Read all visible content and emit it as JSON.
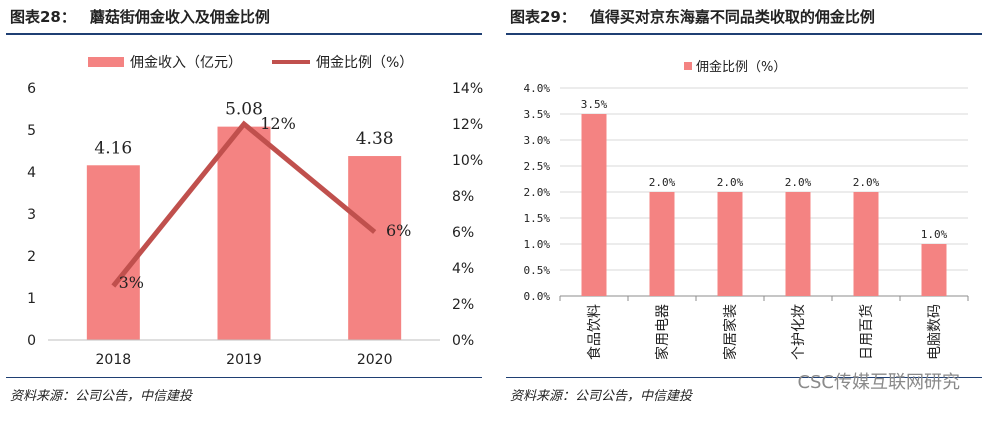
{
  "left": {
    "title_num": "图表28：",
    "title_text": "蘑菇街佣金收入及佣金比例",
    "source": "资料来源：公司公告，中信建投"
  },
  "right": {
    "title_num": "图表29：",
    "title_text": "值得买对京东海嘉不同品类收取的佣金比例",
    "source": "资料来源：公司公告，中信建投"
  },
  "watermark": "CSC传媒互联网研究",
  "colors": {
    "bar": "#f48382",
    "line": "#c0504d",
    "rule": "#1f3f73",
    "grid": "#d9d9d9"
  },
  "chart_data": [
    {
      "type": "bar",
      "categories": [
        "2018",
        "2019",
        "2020"
      ],
      "series": [
        {
          "name": "佣金收入（亿元）",
          "type": "bar",
          "axis": "left",
          "values": [
            4.16,
            5.08,
            4.38
          ],
          "labels": [
            "4.16",
            "5.08",
            "4.38"
          ]
        },
        {
          "name": "佣金比例（%）",
          "type": "line",
          "axis": "right",
          "values": [
            3,
            12,
            6
          ],
          "labels": [
            "3%",
            "12%",
            "6%"
          ]
        }
      ],
      "ylim": [
        0,
        6
      ],
      "yticks": [
        "0",
        "1",
        "2",
        "3",
        "4",
        "5",
        "6"
      ],
      "y2lim": [
        0,
        14
      ],
      "y2ticks": [
        "0%",
        "2%",
        "4%",
        "6%",
        "8%",
        "10%",
        "12%",
        "14%"
      ],
      "legend": "top",
      "grid": false
    },
    {
      "type": "bar",
      "categories": [
        "食品饮料",
        "家用电器",
        "家居家装",
        "个护化妆",
        "日用百货",
        "电脑数码"
      ],
      "series": [
        {
          "name": "佣金比例（%）",
          "values": [
            3.5,
            2.0,
            2.0,
            2.0,
            2.0,
            1.0
          ],
          "labels": [
            "3.5%",
            "2.0%",
            "2.0%",
            "2.0%",
            "2.0%",
            "1.0%"
          ]
        }
      ],
      "ylim": [
        0,
        4
      ],
      "yticks": [
        "0.0%",
        "0.5%",
        "1.0%",
        "1.5%",
        "2.0%",
        "2.5%",
        "3.0%",
        "3.5%",
        "4.0%"
      ],
      "legend": "top",
      "grid": true
    }
  ]
}
